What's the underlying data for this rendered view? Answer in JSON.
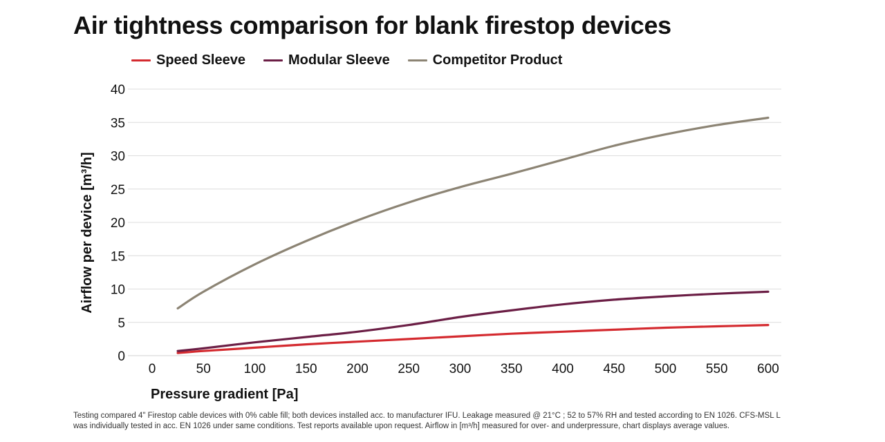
{
  "chart_data": {
    "type": "line",
    "title": "Air tightness comparison for blank firestop devices",
    "xlabel": "Pressure gradient [Pa]",
    "ylabel": "Airflow per device [m³/h]",
    "xlim": [
      0,
      600
    ],
    "ylim": [
      0,
      40
    ],
    "xticks": [
      "0",
      "50",
      "100",
      "150",
      "200",
      "250",
      "300",
      "350",
      "400",
      "450",
      "500",
      "550",
      "600"
    ],
    "yticks": [
      "0",
      "5",
      "10",
      "15",
      "20",
      "25",
      "30",
      "35",
      "40"
    ],
    "grid": "horizontal",
    "legend_position": "top",
    "series": [
      {
        "name": "Speed Sleeve",
        "color": "#d42a2f",
        "x": [
          25,
          50,
          100,
          150,
          200,
          250,
          300,
          350,
          400,
          450,
          500,
          550,
          600
        ],
        "y": [
          0.4,
          0.7,
          1.2,
          1.7,
          2.1,
          2.5,
          2.9,
          3.3,
          3.6,
          3.9,
          4.2,
          4.4,
          4.6
        ]
      },
      {
        "name": "Modular Sleeve",
        "color": "#6b1e45",
        "x": [
          25,
          50,
          100,
          150,
          200,
          250,
          300,
          350,
          400,
          450,
          500,
          550,
          600
        ],
        "y": [
          0.7,
          1.1,
          2.0,
          2.8,
          3.6,
          4.6,
          5.8,
          6.8,
          7.7,
          8.4,
          8.9,
          9.3,
          9.6
        ]
      },
      {
        "name": "Competitor Product",
        "color": "#8c8474",
        "x": [
          25,
          50,
          100,
          150,
          200,
          250,
          300,
          350,
          400,
          450,
          500,
          550,
          600
        ],
        "y": [
          7.1,
          9.6,
          13.7,
          17.2,
          20.3,
          23.0,
          25.3,
          27.3,
          29.4,
          31.5,
          33.2,
          34.6,
          35.7
        ]
      }
    ]
  },
  "footnote": {
    "line1": "Testing compared 4\" Firestop cable devices with 0% cable fill; both devices installed acc. to manufacturer IFU. Leakage measured @ 21°C ; 52 to 57% RH and tested according to EN 1026. CFS-MSL L",
    "line2": "was individually tested in acc. EN 1026 under same conditions. Test reports available upon request. Airflow in [m³/h] measured for over- and underpressure, chart displays average values."
  }
}
